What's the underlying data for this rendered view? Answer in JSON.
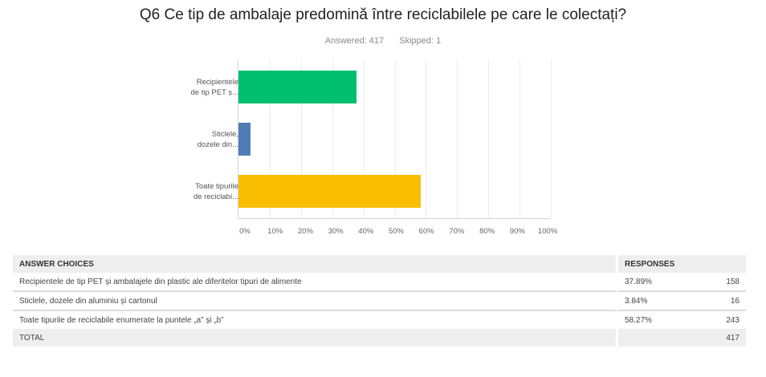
{
  "header": {
    "title": "Q6 Ce tip de ambalaje predomină între reciclabilele pe care le colectați?",
    "answered": "Answered: 417",
    "skipped": "Skipped: 1"
  },
  "chart_data": {
    "type": "bar",
    "orientation": "horizontal",
    "title": "Q6 Ce tip de ambalaje predomină între reciclabilele pe care le colectați?",
    "categories": [
      "Recipientele de tip PET ș...",
      "Sticlele, dozele din...",
      "Toate tipurile de reciclabi..."
    ],
    "category_lines": [
      [
        "Recipientele",
        "de tip PET ș..."
      ],
      [
        "Sticlele,",
        "dozele din..."
      ],
      [
        "Toate tipurile",
        "de reciclabi..."
      ]
    ],
    "values": [
      37.89,
      3.84,
      58.27
    ],
    "colors": [
      "#00bf6f",
      "#507cb6",
      "#f9be00"
    ],
    "xlim": [
      0,
      100
    ],
    "xticks": [
      "0%",
      "10%",
      "20%",
      "30%",
      "40%",
      "50%",
      "60%",
      "70%",
      "80%",
      "90%",
      "100%"
    ],
    "xlabel": "",
    "ylabel": "",
    "grid": true
  },
  "table": {
    "headers": {
      "choices": "ANSWER CHOICES",
      "responses": "RESPONSES"
    },
    "rows": [
      {
        "choice": "Recipientele de tip PET și ambalajele din plastic ale diferitelor tipuri de alimente",
        "percent": "37.89%",
        "count": "158"
      },
      {
        "choice": "Sticlele, dozele din aluminiu și cartonul",
        "percent": "3.84%",
        "count": "16"
      },
      {
        "choice": "Toate tipurile de reciclabile enumerate la puntele „a” și „b”",
        "percent": "58.27%",
        "count": "243"
      }
    ],
    "total_label": "TOTAL",
    "total_count": "417"
  }
}
